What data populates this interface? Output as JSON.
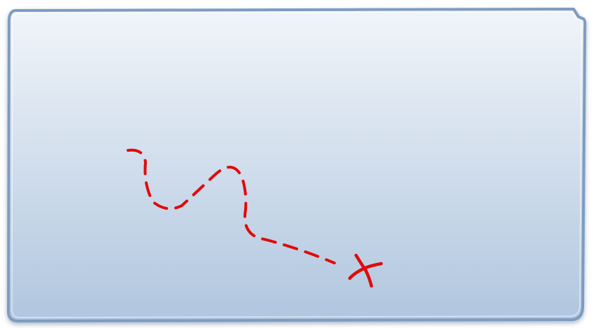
{
  "panel": {
    "fill_top": "#f1f5f9",
    "fill_bottom": "#b0c6df",
    "border_color": "#7d9cc2",
    "shadow_color": "#90a0b4"
  },
  "route": {
    "icon": "dashed-path",
    "color": "#e10a0a"
  },
  "destination": {
    "icon": "x-mark",
    "color": "#e10a0a"
  }
}
